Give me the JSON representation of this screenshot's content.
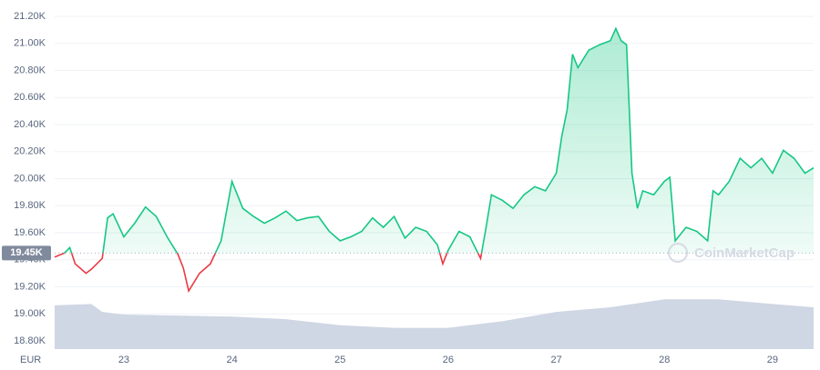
{
  "chart_data": {
    "type": "line",
    "currency": "EUR",
    "watermark": "CoinMarketCap",
    "reference": {
      "value": 19450,
      "label": "19.45K"
    },
    "x": [
      22.36,
      22.45,
      22.5,
      22.55,
      22.65,
      22.7,
      22.8,
      22.85,
      22.9,
      23.0,
      23.1,
      23.2,
      23.3,
      23.4,
      23.5,
      23.55,
      23.6,
      23.7,
      23.8,
      23.9,
      24.0,
      24.1,
      24.2,
      24.3,
      24.4,
      24.5,
      24.6,
      24.7,
      24.8,
      24.9,
      25.0,
      25.1,
      25.2,
      25.3,
      25.4,
      25.5,
      25.6,
      25.7,
      25.8,
      25.9,
      25.95,
      26.0,
      26.1,
      26.2,
      26.3,
      26.35,
      26.4,
      26.5,
      26.6,
      26.7,
      26.8,
      26.9,
      27.0,
      27.05,
      27.1,
      27.15,
      27.2,
      27.3,
      27.4,
      27.5,
      27.55,
      27.6,
      27.65,
      27.7,
      27.75,
      27.8,
      27.9,
      28.0,
      28.05,
      28.1,
      28.2,
      28.3,
      28.4,
      28.45,
      28.5,
      28.6,
      28.7,
      28.8,
      28.9,
      29.0,
      29.1,
      29.2,
      29.3,
      29.38
    ],
    "series": [
      {
        "name": "Price",
        "color": "#16c784",
        "below_color": "#ea3943",
        "values": [
          19420,
          19450,
          19490,
          19370,
          19300,
          19330,
          19410,
          19710,
          19740,
          19570,
          19670,
          19790,
          19720,
          19570,
          19440,
          19340,
          19170,
          19300,
          19370,
          19540,
          19980,
          19780,
          19720,
          19670,
          19710,
          19760,
          19690,
          19710,
          19720,
          19610,
          19540,
          19570,
          19610,
          19710,
          19640,
          19720,
          19560,
          19640,
          19610,
          19510,
          19370,
          19470,
          19610,
          19570,
          19410,
          19640,
          19880,
          19840,
          19780,
          19880,
          19940,
          19910,
          20040,
          20310,
          20510,
          20920,
          20820,
          20950,
          20990,
          21020,
          21110,
          21020,
          20990,
          20040,
          19780,
          19910,
          19880,
          19980,
          20010,
          19540,
          19640,
          19610,
          19540,
          19910,
          19880,
          19980,
          20150,
          20080,
          20150,
          20040,
          20210,
          20150,
          20040,
          20080
        ]
      }
    ],
    "volume": {
      "color": "#cfd6e4",
      "ylim": [
        0,
        100
      ],
      "x": [
        22.36,
        22.7,
        22.8,
        23.0,
        24.0,
        24.5,
        25.0,
        25.5,
        26.0,
        26.5,
        27.0,
        27.5,
        28.0,
        28.5,
        29.0,
        29.38
      ],
      "values": [
        66,
        68,
        56,
        52,
        49,
        45,
        36,
        32,
        32,
        42,
        56,
        63,
        75,
        75,
        68,
        63
      ]
    },
    "xlim": [
      22.36,
      29.38
    ],
    "xticks": [
      23,
      24,
      25,
      26,
      27,
      28,
      29
    ],
    "ylim": [
      18800,
      21200
    ],
    "yticks": [
      {
        "value": 18800,
        "label": "18.80K"
      },
      {
        "value": 19000,
        "label": "19.00K"
      },
      {
        "value": 19200,
        "label": "19.20K"
      },
      {
        "value": 19400,
        "label": "19.40K"
      },
      {
        "value": 19600,
        "label": "19.60K"
      },
      {
        "value": 19800,
        "label": "19.80K"
      },
      {
        "value": 20000,
        "label": "20.00K"
      },
      {
        "value": 20200,
        "label": "20.20K"
      },
      {
        "value": 20400,
        "label": "20.40K"
      },
      {
        "value": 20600,
        "label": "20.60K"
      },
      {
        "value": 20800,
        "label": "20.80K"
      },
      {
        "value": 21000,
        "label": "21.00K"
      },
      {
        "value": 21200,
        "label": "21.20K"
      }
    ],
    "grid": true
  }
}
